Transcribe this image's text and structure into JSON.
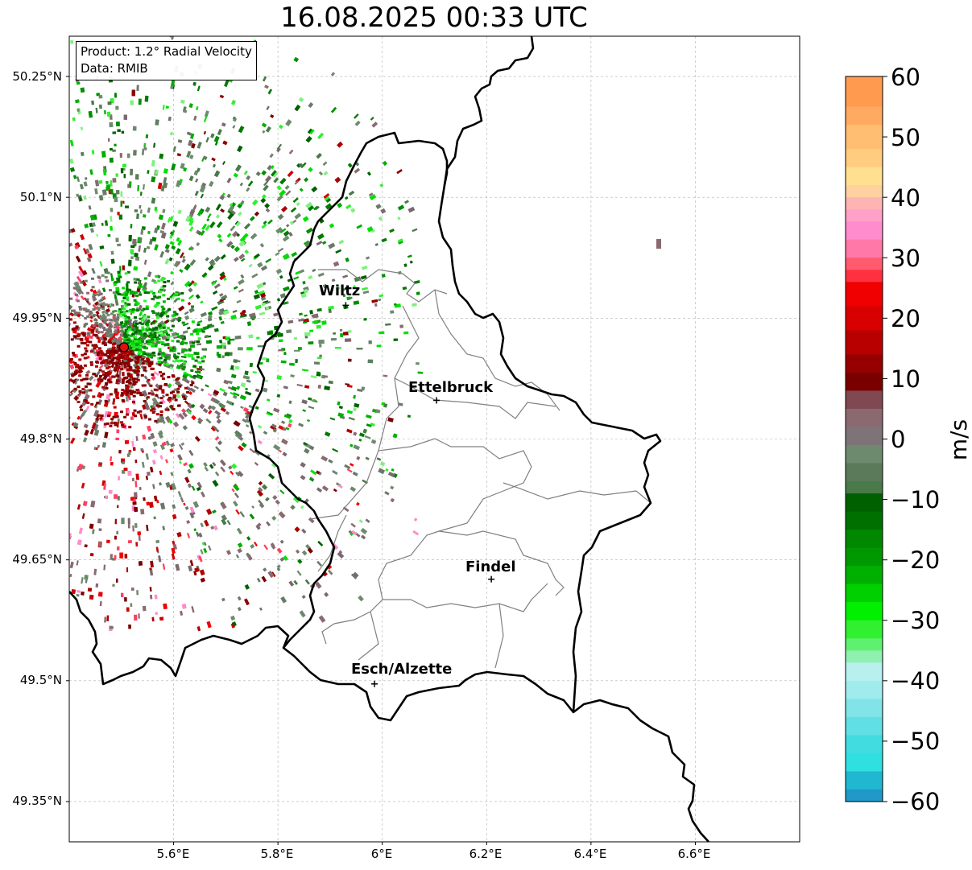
{
  "title": "16.08.2025 00:33 UTC",
  "info_box": {
    "product": "Product: 1.2° Radial Velocity",
    "data_source": "Data: RMIB"
  },
  "map": {
    "lon_range": [
      5.4,
      6.8
    ],
    "lat_range": [
      49.3,
      50.3
    ],
    "lat_ticks": [
      {
        "value": 50.25,
        "label": "50.25°N"
      },
      {
        "value": 50.1,
        "label": "50.1°N"
      },
      {
        "value": 49.95,
        "label": "49.95°N"
      },
      {
        "value": 49.8,
        "label": "49.8°N"
      },
      {
        "value": 49.65,
        "label": "49.65°N"
      },
      {
        "value": 49.5,
        "label": "49.5°N"
      },
      {
        "value": 49.35,
        "label": "49.35°N"
      }
    ],
    "lon_ticks": [
      {
        "value": 5.6,
        "label": "5.6°E"
      },
      {
        "value": 5.8,
        "label": "5.8°E"
      },
      {
        "value": 6.0,
        "label": "6°E"
      },
      {
        "value": 6.2,
        "label": "6.2°E"
      },
      {
        "value": 6.4,
        "label": "6.4°E"
      },
      {
        "value": 6.6,
        "label": "6.6°E"
      }
    ],
    "radar_site": {
      "lon": 5.505,
      "lat": 49.914
    },
    "cities": [
      {
        "name": "Wiltz",
        "lon": 5.93,
        "lat": 49.966
      },
      {
        "name": "Ettelbruck",
        "lon": 6.104,
        "lat": 49.848
      },
      {
        "name": "Findel",
        "lon": 6.209,
        "lat": 49.626
      },
      {
        "name": "Esch/Alzette",
        "lon": 5.985,
        "lat": 49.496
      }
    ],
    "grid": true
  },
  "colorbar": {
    "unit": "m/s",
    "min": -60,
    "max": 60,
    "ticks": [
      "60",
      "50",
      "40",
      "30",
      "20",
      "10",
      "0",
      "−10",
      "−20",
      "−30",
      "−40",
      "−50",
      "−60"
    ],
    "tick_values": [
      60,
      50,
      40,
      30,
      20,
      10,
      0,
      -10,
      -20,
      -30,
      -40,
      -50,
      -60
    ],
    "colors": {
      "orange": "#ff9a4f",
      "light_orange": "#ffc47a",
      "pink": "#ff8ccc",
      "red": "#f00000",
      "dark_red": "#7a0000",
      "brownish_gray": "#8a6a70",
      "gray_green": "#6e8a6e",
      "dark_green": "#006000",
      "green": "#00e000",
      "light_green": "#80f080",
      "light_cyan": "#b8f0f0",
      "cyan": "#30e0e0",
      "blue": "#2080c0"
    }
  }
}
